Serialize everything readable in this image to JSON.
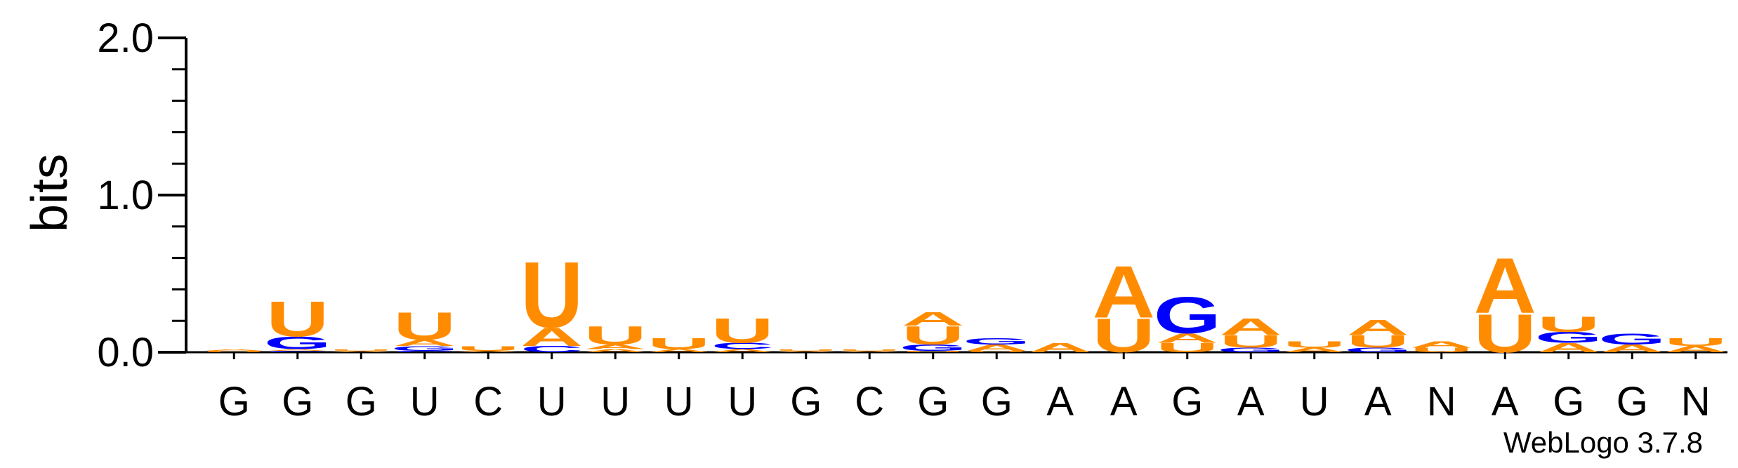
{
  "chart_data": {
    "type": "sequence-logo",
    "ylabel": "bits",
    "ylim": [
      0,
      2.0
    ],
    "yticks": [
      {
        "value": 0.0,
        "label": "0.0"
      },
      {
        "value": 1.0,
        "label": "1.0"
      },
      {
        "value": 2.0,
        "label": "2.0"
      }
    ],
    "colors": {
      "A": "#ff8c00",
      "U": "#ff8c00",
      "G": "#0000ff",
      "C": "#0000ff",
      "axis": "#000000"
    },
    "positions": [
      {
        "label": "G",
        "stack": [
          [
            "U",
            0.01
          ],
          [
            "A",
            0.01
          ]
        ]
      },
      {
        "label": "G",
        "stack": [
          [
            "C",
            0.01
          ],
          [
            "A",
            0.01
          ],
          [
            "G",
            0.08
          ],
          [
            "U",
            0.23
          ]
        ]
      },
      {
        "label": "G",
        "stack": [
          [
            "A",
            0.01
          ],
          [
            "U",
            0.01
          ]
        ]
      },
      {
        "label": "U",
        "stack": [
          [
            "C",
            0.01
          ],
          [
            "G",
            0.03
          ],
          [
            "A",
            0.04
          ],
          [
            "U",
            0.18
          ]
        ]
      },
      {
        "label": "C",
        "stack": [
          [
            "A",
            0.01
          ],
          [
            "U",
            0.03
          ]
        ]
      },
      {
        "label": "U",
        "stack": [
          [
            "C",
            0.04
          ],
          [
            "A",
            0.12
          ],
          [
            "U",
            0.43
          ]
        ]
      },
      {
        "label": "U",
        "stack": [
          [
            "A",
            0.02
          ],
          [
            "A",
            0.03
          ],
          [
            "U",
            0.12
          ]
        ]
      },
      {
        "label": "U",
        "stack": [
          [
            "A",
            0.02
          ],
          [
            "U",
            0.07
          ]
        ]
      },
      {
        "label": "U",
        "stack": [
          [
            "A",
            0.02
          ],
          [
            "C",
            0.04
          ],
          [
            "U",
            0.16
          ]
        ]
      },
      {
        "label": "G",
        "stack": [
          [
            "A",
            0.01
          ],
          [
            "U",
            0.01
          ]
        ]
      },
      {
        "label": "C",
        "stack": [
          [
            "A",
            0.01
          ],
          [
            "U",
            0.01
          ]
        ]
      },
      {
        "label": "G",
        "stack": [
          [
            "U",
            0.01
          ],
          [
            "G",
            0.04
          ],
          [
            "U",
            0.12
          ],
          [
            "A",
            0.09
          ]
        ]
      },
      {
        "label": "G",
        "stack": [
          [
            "U",
            0.01
          ],
          [
            "A",
            0.04
          ],
          [
            "G",
            0.04
          ]
        ]
      },
      {
        "label": "A",
        "stack": [
          [
            "A",
            0.06
          ]
        ]
      },
      {
        "label": "A",
        "stack": [
          [
            "U",
            0.22
          ],
          [
            "A",
            0.34
          ]
        ]
      },
      {
        "label": "G",
        "stack": [
          [
            "U",
            0.06
          ],
          [
            "A",
            0.06
          ],
          [
            "G",
            0.24
          ]
        ]
      },
      {
        "label": "A",
        "stack": [
          [
            "G",
            0.03
          ],
          [
            "U",
            0.08
          ],
          [
            "A",
            0.11
          ]
        ]
      },
      {
        "label": "U",
        "stack": [
          [
            "A",
            0.03
          ],
          [
            "U",
            0.04
          ]
        ]
      },
      {
        "label": "A",
        "stack": [
          [
            "G",
            0.03
          ],
          [
            "U",
            0.08
          ],
          [
            "A",
            0.1
          ]
        ]
      },
      {
        "label": "N",
        "stack": [
          [
            "U",
            0.03
          ],
          [
            "A",
            0.04
          ]
        ]
      },
      {
        "label": "A",
        "stack": [
          [
            "U",
            0.25
          ],
          [
            "A",
            0.36
          ]
        ]
      },
      {
        "label": "G",
        "stack": [
          [
            "A",
            0.06
          ],
          [
            "G",
            0.07
          ],
          [
            "U",
            0.1
          ]
        ]
      },
      {
        "label": "G",
        "stack": [
          [
            "A",
            0.05
          ],
          [
            "G",
            0.07
          ]
        ]
      },
      {
        "label": "N",
        "stack": [
          [
            "A",
            0.04
          ],
          [
            "U",
            0.05
          ]
        ]
      }
    ]
  },
  "version_label": "WebLogo 3.7.8"
}
